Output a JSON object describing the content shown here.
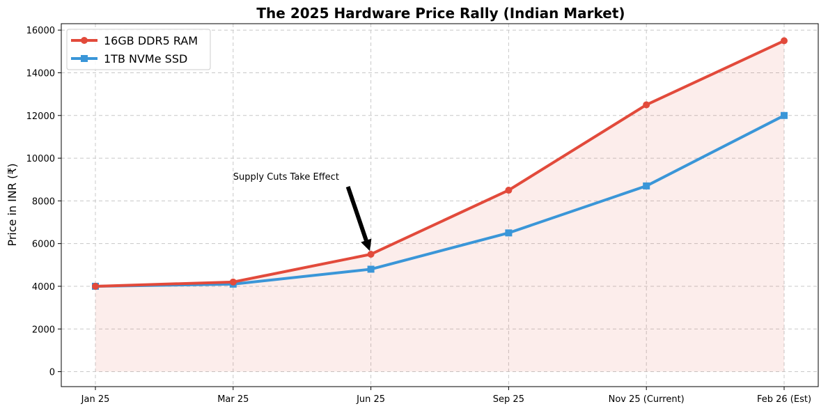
{
  "chart_data": {
    "type": "line",
    "title": "The 2025 Hardware Price Rally (Indian Market)",
    "xlabel": "",
    "ylabel": "Price in INR (₹)",
    "categories": [
      "Jan 25",
      "Mar 25",
      "Jun 25",
      "Sep 25",
      "Nov 25 (Current)",
      "Feb 26 (Est)"
    ],
    "ylim": [
      -700,
      16300
    ],
    "yticks": [
      0,
      2000,
      4000,
      6000,
      8000,
      10000,
      12000,
      14000,
      16000
    ],
    "grid": true,
    "legend_position": "top-left",
    "series": [
      {
        "name": "16GB DDR5 RAM",
        "values": [
          4000,
          4200,
          5500,
          8500,
          12500,
          15500
        ],
        "color": "#e24a3b",
        "marker": "circle",
        "fill_to_zero": true,
        "fill_color": "#e24a3b"
      },
      {
        "name": "1TB NVMe SSD",
        "values": [
          4000,
          4100,
          4800,
          6500,
          8700,
          12000
        ],
        "color": "#3a96d8",
        "marker": "square",
        "fill_to_zero": false
      }
    ],
    "annotations": [
      {
        "text": "Supply Cuts Take Effect",
        "target_category": "Jun 25",
        "target_value": 5500
      }
    ]
  }
}
